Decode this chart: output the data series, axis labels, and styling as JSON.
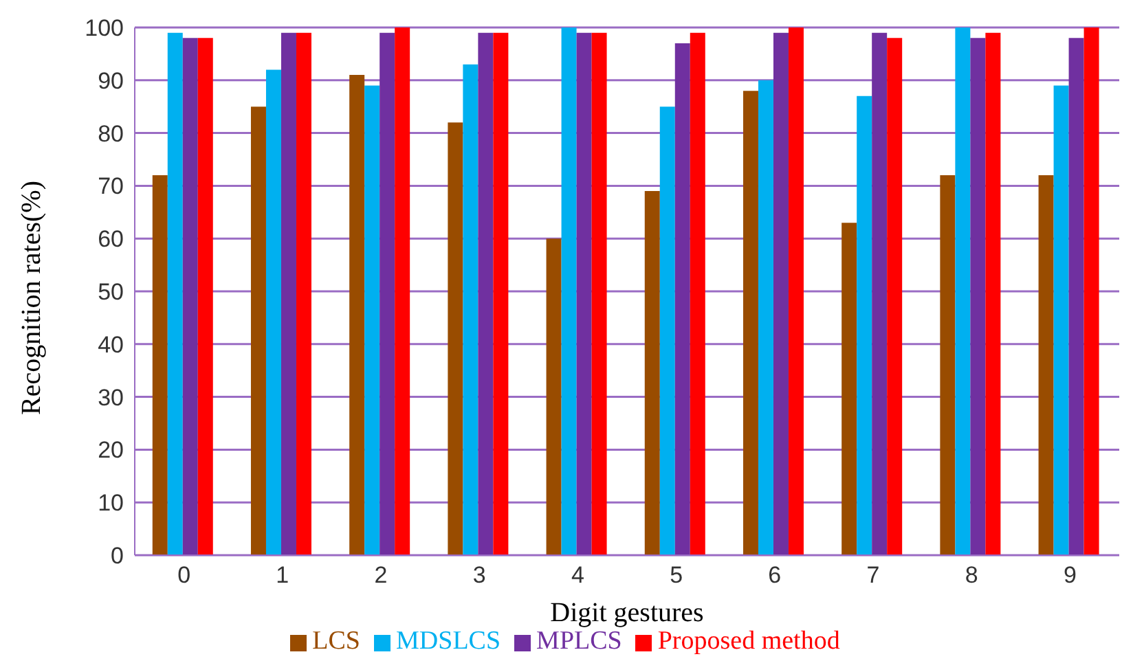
{
  "chart_data": {
    "type": "bar",
    "xlabel": "Digit gestures",
    "ylabel": "Recognition rates(%)",
    "categories": [
      "0",
      "1",
      "2",
      "3",
      "4",
      "5",
      "6",
      "7",
      "8",
      "9"
    ],
    "series": [
      {
        "name": "LCS",
        "color": "#994c00",
        "values": [
          72,
          85,
          91,
          82,
          60,
          69,
          88,
          63,
          72,
          72
        ]
      },
      {
        "name": "MDSLCS",
        "color": "#00b0f0",
        "values": [
          99,
          92,
          89,
          93,
          100,
          85,
          90,
          87,
          100,
          89
        ]
      },
      {
        "name": "MPLCS",
        "color": "#7030a0",
        "values": [
          98,
          99,
          99,
          99,
          99,
          97,
          99,
          99,
          98,
          98
        ]
      },
      {
        "name": "Proposed method",
        "color": "#ff0000",
        "values": [
          98,
          99,
          100,
          99,
          99,
          99,
          100,
          98,
          99,
          100
        ]
      }
    ],
    "ylim": [
      0,
      100
    ],
    "yticks": [
      0,
      10,
      20,
      30,
      40,
      50,
      60,
      70,
      80,
      90,
      100
    ],
    "grid": "y",
    "legend": "bottom"
  }
}
